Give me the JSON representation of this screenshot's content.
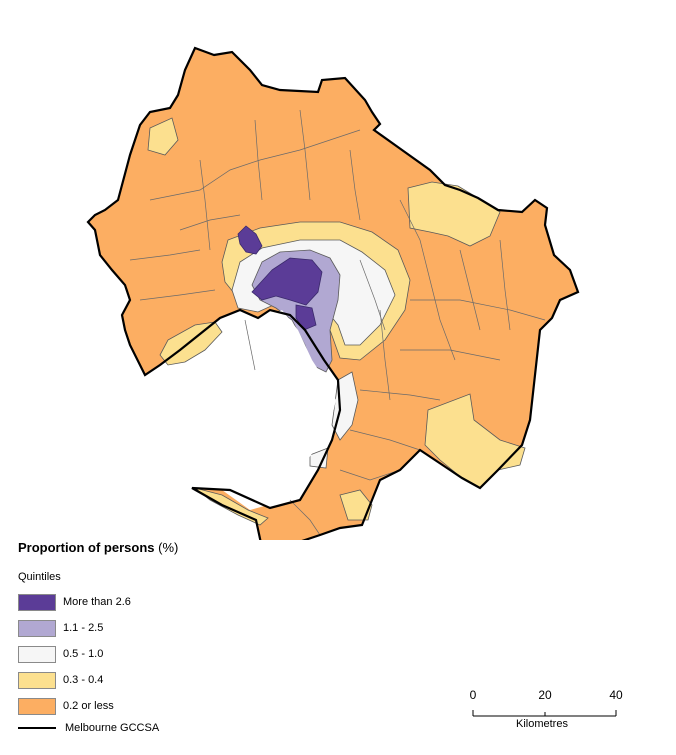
{
  "legend": {
    "title": "Proportion of persons",
    "title_unit": "(%)",
    "subtitle": "Quintiles",
    "classes": [
      {
        "label": "More than 2.6",
        "color": "#5b3c97"
      },
      {
        "label": "1.1 - 2.5",
        "color": "#b1a8d2"
      },
      {
        "label": "0.5 - 1.0",
        "color": "#f6f6f6"
      },
      {
        "label": "0.3 - 0.4",
        "color": "#fce08f"
      },
      {
        "label": "0.2 or less",
        "color": "#fcae62"
      }
    ],
    "boundary_label": "Melbourne GCCSA"
  },
  "scale_bar": {
    "ticks": [
      "0",
      "20",
      "40"
    ],
    "units": "Kilometres"
  }
}
